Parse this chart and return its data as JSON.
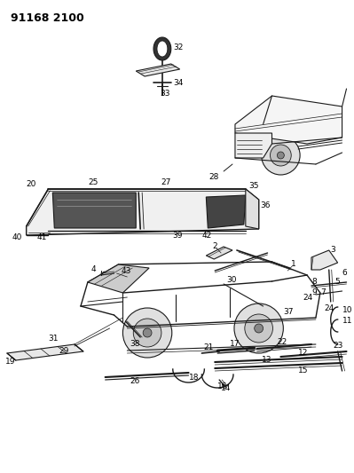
{
  "title": "91168 2100",
  "bg_color": "#ffffff",
  "lc": "#1a1a1a",
  "tc": "#000000",
  "fig_w": 3.99,
  "fig_h": 5.33,
  "dpi": 100,
  "title_fs": 9,
  "lbl_fs": 6.5
}
